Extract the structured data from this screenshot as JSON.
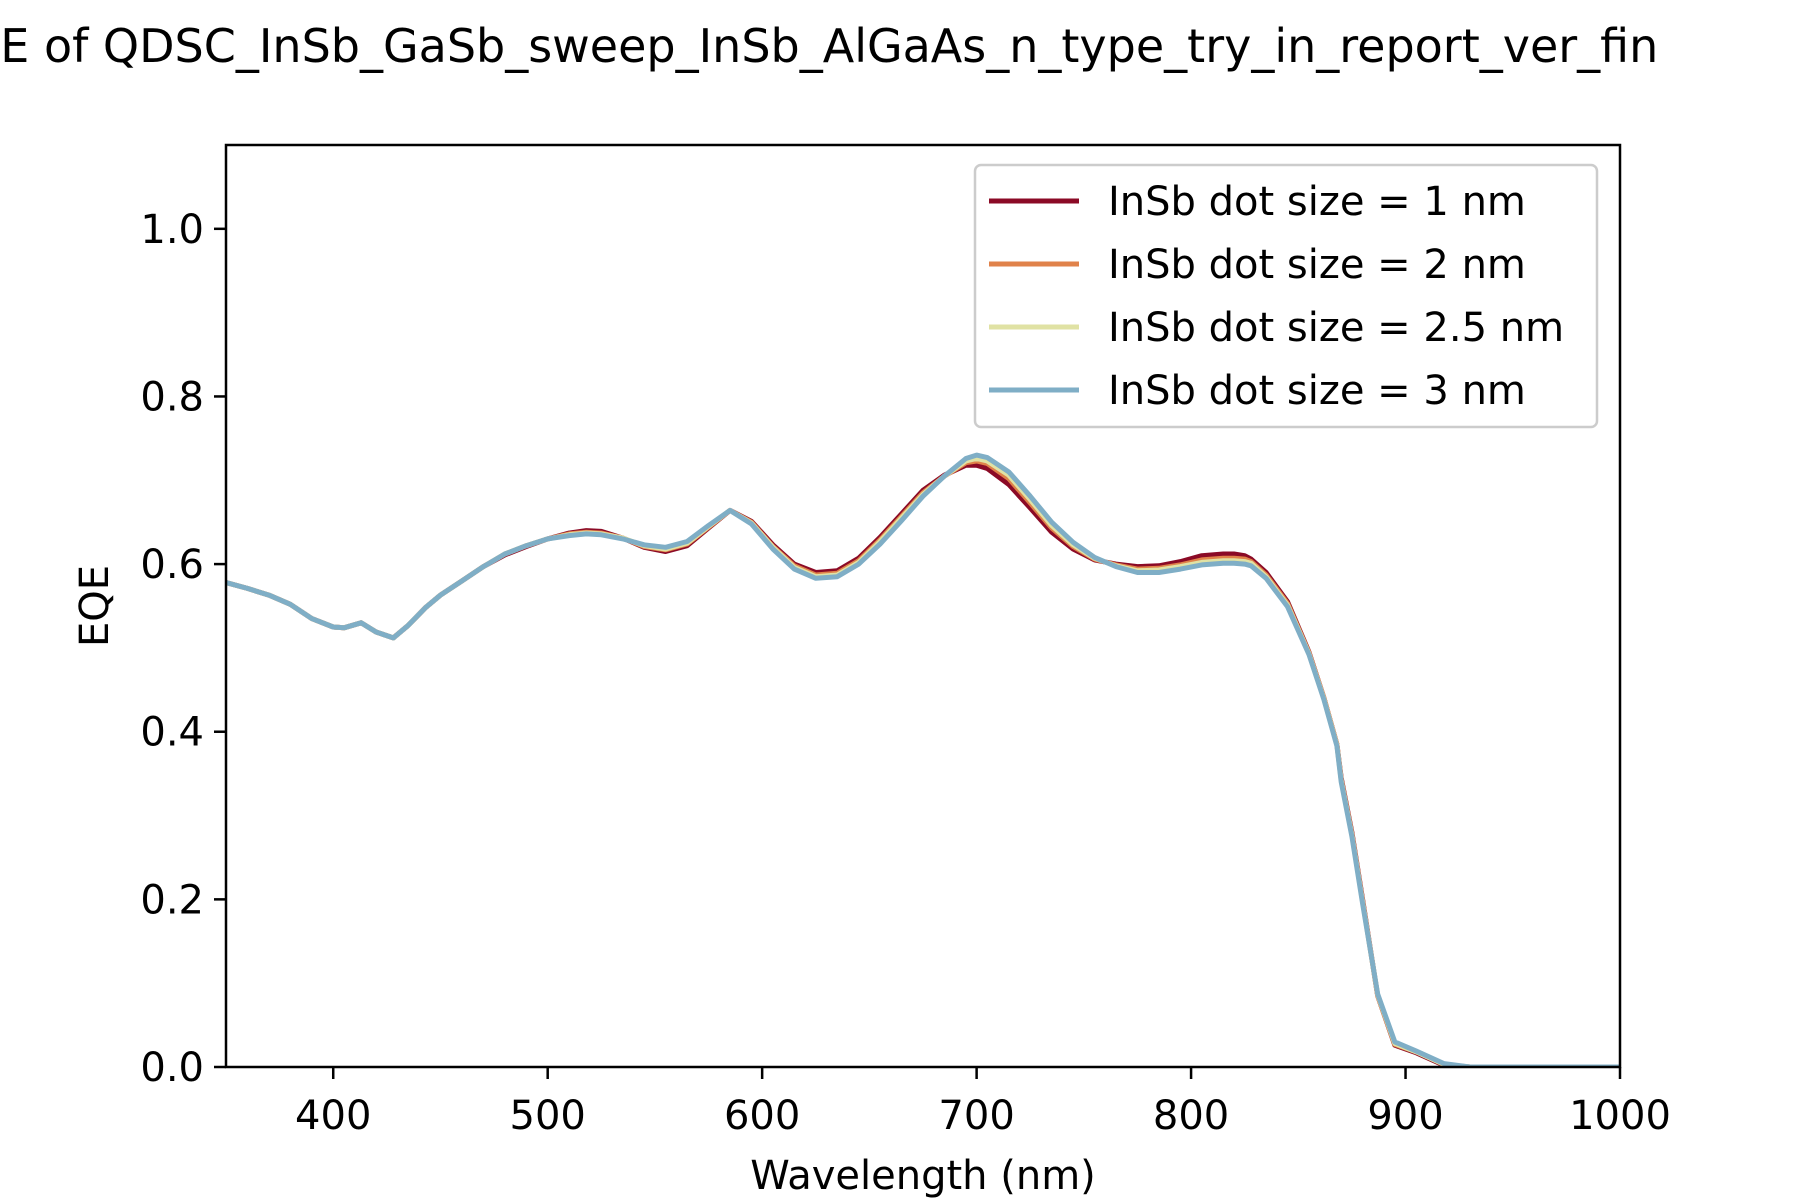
{
  "chart_data": {
    "type": "line",
    "title": "EQE of  QDSC_InSb_GaSb_sweep_InSb_AlGaAs_n_type_try_in_report_ver_fin",
    "xlabel": "Wavelength (nm)",
    "ylabel": "EQE",
    "xlim": [
      350,
      1000
    ],
    "ylim": [
      0,
      1.1
    ],
    "xticks": [
      "400",
      "500",
      "600",
      "700",
      "800",
      "900",
      "1000"
    ],
    "yticks": [
      "0.0",
      "0.2",
      "0.4",
      "0.6",
      "0.8",
      "1.0"
    ],
    "grid": false,
    "legend_position": "top-right",
    "x": [
      350,
      360,
      370,
      380,
      390,
      400,
      405,
      413,
      420,
      428,
      435,
      443,
      450,
      460,
      470,
      480,
      490,
      500,
      510,
      518,
      525,
      535,
      545,
      555,
      565,
      575,
      585,
      595,
      605,
      615,
      625,
      635,
      645,
      655,
      665,
      675,
      685,
      695,
      700,
      705,
      715,
      725,
      735,
      745,
      755,
      765,
      775,
      785,
      795,
      805,
      815,
      820,
      825,
      828,
      835,
      845,
      855,
      862,
      868,
      870,
      875,
      880,
      887,
      895,
      905,
      918,
      930,
      950,
      1000
    ],
    "series": [
      {
        "name": "InSb dot size = 1 nm",
        "color": "#8b0a26",
        "values": [
          0.578,
          0.571,
          0.563,
          0.552,
          0.535,
          0.525,
          0.524,
          0.53,
          0.519,
          0.512,
          0.527,
          0.548,
          0.563,
          0.58,
          0.597,
          0.611,
          0.621,
          0.63,
          0.637,
          0.64,
          0.639,
          0.631,
          0.62,
          0.615,
          0.622,
          0.643,
          0.664,
          0.651,
          0.623,
          0.6,
          0.59,
          0.592,
          0.607,
          0.632,
          0.66,
          0.688,
          0.706,
          0.718,
          0.718,
          0.714,
          0.695,
          0.667,
          0.638,
          0.618,
          0.605,
          0.6,
          0.597,
          0.598,
          0.603,
          0.61,
          0.612,
          0.612,
          0.61,
          0.606,
          0.59,
          0.555,
          0.495,
          0.44,
          0.385,
          0.345,
          0.28,
          0.2,
          0.085,
          0.026,
          0.017,
          0.002,
          0.0,
          0.0,
          0.0
        ]
      },
      {
        "name": "InSb dot size = 2 nm",
        "color": "#e0824a",
        "values": [
          0.578,
          0.571,
          0.563,
          0.552,
          0.535,
          0.525,
          0.524,
          0.53,
          0.519,
          0.512,
          0.527,
          0.548,
          0.563,
          0.58,
          0.597,
          0.612,
          0.622,
          0.63,
          0.636,
          0.638,
          0.637,
          0.631,
          0.621,
          0.617,
          0.624,
          0.644,
          0.664,
          0.65,
          0.621,
          0.598,
          0.587,
          0.589,
          0.604,
          0.629,
          0.657,
          0.685,
          0.705,
          0.721,
          0.723,
          0.72,
          0.702,
          0.673,
          0.643,
          0.621,
          0.606,
          0.599,
          0.594,
          0.595,
          0.599,
          0.605,
          0.607,
          0.607,
          0.606,
          0.603,
          0.587,
          0.553,
          0.494,
          0.44,
          0.385,
          0.343,
          0.278,
          0.198,
          0.085,
          0.027,
          0.018,
          0.003,
          0.0,
          0.0,
          0.0
        ]
      },
      {
        "name": "InSb dot size = 2.5 nm",
        "color": "#e0e2a4",
        "values": [
          0.578,
          0.571,
          0.563,
          0.552,
          0.535,
          0.525,
          0.524,
          0.53,
          0.519,
          0.512,
          0.527,
          0.548,
          0.563,
          0.58,
          0.597,
          0.612,
          0.622,
          0.63,
          0.635,
          0.637,
          0.636,
          0.631,
          0.622,
          0.618,
          0.625,
          0.645,
          0.664,
          0.649,
          0.62,
          0.596,
          0.585,
          0.587,
          0.602,
          0.627,
          0.655,
          0.683,
          0.705,
          0.723,
          0.726,
          0.723,
          0.706,
          0.677,
          0.646,
          0.623,
          0.607,
          0.598,
          0.592,
          0.593,
          0.597,
          0.602,
          0.604,
          0.604,
          0.603,
          0.601,
          0.585,
          0.551,
          0.493,
          0.439,
          0.384,
          0.342,
          0.277,
          0.197,
          0.086,
          0.028,
          0.018,
          0.003,
          0.0,
          0.0,
          0.0
        ]
      },
      {
        "name": "InSb dot size = 3 nm",
        "color": "#7faec6",
        "values": [
          0.578,
          0.571,
          0.563,
          0.552,
          0.535,
          0.525,
          0.524,
          0.53,
          0.519,
          0.512,
          0.527,
          0.548,
          0.563,
          0.58,
          0.597,
          0.612,
          0.622,
          0.63,
          0.634,
          0.636,
          0.635,
          0.63,
          0.623,
          0.62,
          0.627,
          0.646,
          0.664,
          0.648,
          0.618,
          0.594,
          0.583,
          0.585,
          0.6,
          0.624,
          0.652,
          0.681,
          0.705,
          0.726,
          0.73,
          0.727,
          0.71,
          0.681,
          0.65,
          0.626,
          0.608,
          0.597,
          0.59,
          0.59,
          0.594,
          0.599,
          0.601,
          0.601,
          0.6,
          0.598,
          0.583,
          0.549,
          0.492,
          0.438,
          0.383,
          0.34,
          0.275,
          0.195,
          0.087,
          0.03,
          0.019,
          0.004,
          0.0,
          0.0,
          0.0
        ]
      }
    ]
  }
}
